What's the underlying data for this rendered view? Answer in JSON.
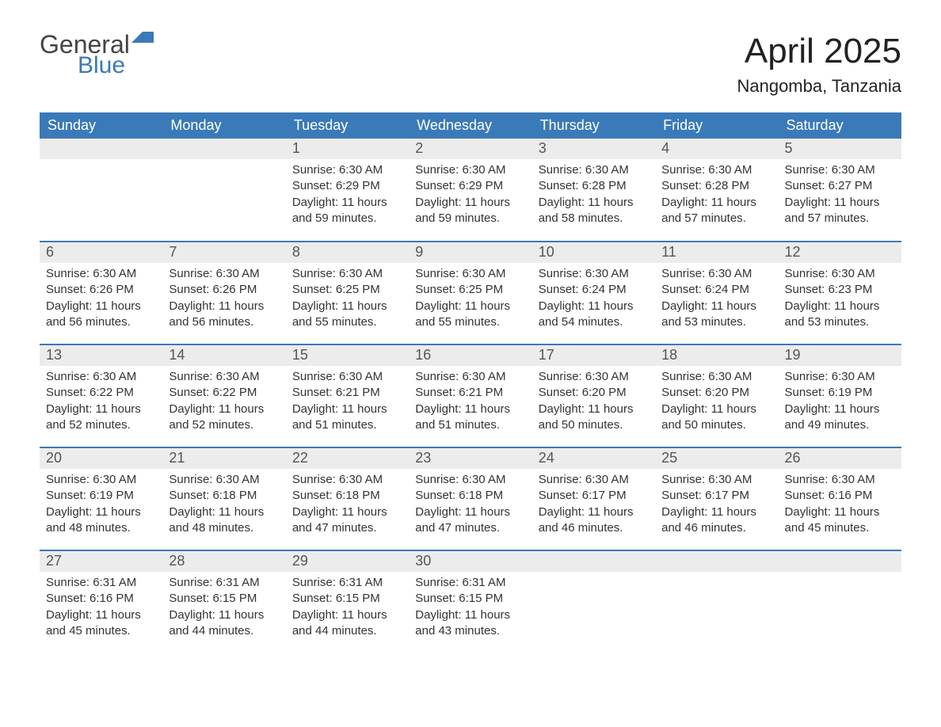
{
  "logo": {
    "word1": "General",
    "word2": "Blue"
  },
  "title": "April 2025",
  "location": "Nangomba, Tanzania",
  "colors": {
    "header_bg": "#3a7ab8",
    "header_text": "#ffffff",
    "daynum_bg": "#ececec",
    "divider": "#3a7ab8",
    "body_text": "#333333",
    "page_bg": "#ffffff"
  },
  "typography": {
    "title_fontsize": 44,
    "location_fontsize": 22,
    "header_fontsize": 18,
    "daynum_fontsize": 18,
    "body_fontsize": 15
  },
  "columns": [
    "Sunday",
    "Monday",
    "Tuesday",
    "Wednesday",
    "Thursday",
    "Friday",
    "Saturday"
  ],
  "weeks": [
    [
      {
        "day": "",
        "sunrise": "",
        "sunset": "",
        "daylight": ""
      },
      {
        "day": "",
        "sunrise": "",
        "sunset": "",
        "daylight": ""
      },
      {
        "day": "1",
        "sunrise": "Sunrise: 6:30 AM",
        "sunset": "Sunset: 6:29 PM",
        "daylight": "Daylight: 11 hours and 59 minutes."
      },
      {
        "day": "2",
        "sunrise": "Sunrise: 6:30 AM",
        "sunset": "Sunset: 6:29 PM",
        "daylight": "Daylight: 11 hours and 59 minutes."
      },
      {
        "day": "3",
        "sunrise": "Sunrise: 6:30 AM",
        "sunset": "Sunset: 6:28 PM",
        "daylight": "Daylight: 11 hours and 58 minutes."
      },
      {
        "day": "4",
        "sunrise": "Sunrise: 6:30 AM",
        "sunset": "Sunset: 6:28 PM",
        "daylight": "Daylight: 11 hours and 57 minutes."
      },
      {
        "day": "5",
        "sunrise": "Sunrise: 6:30 AM",
        "sunset": "Sunset: 6:27 PM",
        "daylight": "Daylight: 11 hours and 57 minutes."
      }
    ],
    [
      {
        "day": "6",
        "sunrise": "Sunrise: 6:30 AM",
        "sunset": "Sunset: 6:26 PM",
        "daylight": "Daylight: 11 hours and 56 minutes."
      },
      {
        "day": "7",
        "sunrise": "Sunrise: 6:30 AM",
        "sunset": "Sunset: 6:26 PM",
        "daylight": "Daylight: 11 hours and 56 minutes."
      },
      {
        "day": "8",
        "sunrise": "Sunrise: 6:30 AM",
        "sunset": "Sunset: 6:25 PM",
        "daylight": "Daylight: 11 hours and 55 minutes."
      },
      {
        "day": "9",
        "sunrise": "Sunrise: 6:30 AM",
        "sunset": "Sunset: 6:25 PM",
        "daylight": "Daylight: 11 hours and 55 minutes."
      },
      {
        "day": "10",
        "sunrise": "Sunrise: 6:30 AM",
        "sunset": "Sunset: 6:24 PM",
        "daylight": "Daylight: 11 hours and 54 minutes."
      },
      {
        "day": "11",
        "sunrise": "Sunrise: 6:30 AM",
        "sunset": "Sunset: 6:24 PM",
        "daylight": "Daylight: 11 hours and 53 minutes."
      },
      {
        "day": "12",
        "sunrise": "Sunrise: 6:30 AM",
        "sunset": "Sunset: 6:23 PM",
        "daylight": "Daylight: 11 hours and 53 minutes."
      }
    ],
    [
      {
        "day": "13",
        "sunrise": "Sunrise: 6:30 AM",
        "sunset": "Sunset: 6:22 PM",
        "daylight": "Daylight: 11 hours and 52 minutes."
      },
      {
        "day": "14",
        "sunrise": "Sunrise: 6:30 AM",
        "sunset": "Sunset: 6:22 PM",
        "daylight": "Daylight: 11 hours and 52 minutes."
      },
      {
        "day": "15",
        "sunrise": "Sunrise: 6:30 AM",
        "sunset": "Sunset: 6:21 PM",
        "daylight": "Daylight: 11 hours and 51 minutes."
      },
      {
        "day": "16",
        "sunrise": "Sunrise: 6:30 AM",
        "sunset": "Sunset: 6:21 PM",
        "daylight": "Daylight: 11 hours and 51 minutes."
      },
      {
        "day": "17",
        "sunrise": "Sunrise: 6:30 AM",
        "sunset": "Sunset: 6:20 PM",
        "daylight": "Daylight: 11 hours and 50 minutes."
      },
      {
        "day": "18",
        "sunrise": "Sunrise: 6:30 AM",
        "sunset": "Sunset: 6:20 PM",
        "daylight": "Daylight: 11 hours and 50 minutes."
      },
      {
        "day": "19",
        "sunrise": "Sunrise: 6:30 AM",
        "sunset": "Sunset: 6:19 PM",
        "daylight": "Daylight: 11 hours and 49 minutes."
      }
    ],
    [
      {
        "day": "20",
        "sunrise": "Sunrise: 6:30 AM",
        "sunset": "Sunset: 6:19 PM",
        "daylight": "Daylight: 11 hours and 48 minutes."
      },
      {
        "day": "21",
        "sunrise": "Sunrise: 6:30 AM",
        "sunset": "Sunset: 6:18 PM",
        "daylight": "Daylight: 11 hours and 48 minutes."
      },
      {
        "day": "22",
        "sunrise": "Sunrise: 6:30 AM",
        "sunset": "Sunset: 6:18 PM",
        "daylight": "Daylight: 11 hours and 47 minutes."
      },
      {
        "day": "23",
        "sunrise": "Sunrise: 6:30 AM",
        "sunset": "Sunset: 6:18 PM",
        "daylight": "Daylight: 11 hours and 47 minutes."
      },
      {
        "day": "24",
        "sunrise": "Sunrise: 6:30 AM",
        "sunset": "Sunset: 6:17 PM",
        "daylight": "Daylight: 11 hours and 46 minutes."
      },
      {
        "day": "25",
        "sunrise": "Sunrise: 6:30 AM",
        "sunset": "Sunset: 6:17 PM",
        "daylight": "Daylight: 11 hours and 46 minutes."
      },
      {
        "day": "26",
        "sunrise": "Sunrise: 6:30 AM",
        "sunset": "Sunset: 6:16 PM",
        "daylight": "Daylight: 11 hours and 45 minutes."
      }
    ],
    [
      {
        "day": "27",
        "sunrise": "Sunrise: 6:31 AM",
        "sunset": "Sunset: 6:16 PM",
        "daylight": "Daylight: 11 hours and 45 minutes."
      },
      {
        "day": "28",
        "sunrise": "Sunrise: 6:31 AM",
        "sunset": "Sunset: 6:15 PM",
        "daylight": "Daylight: 11 hours and 44 minutes."
      },
      {
        "day": "29",
        "sunrise": "Sunrise: 6:31 AM",
        "sunset": "Sunset: 6:15 PM",
        "daylight": "Daylight: 11 hours and 44 minutes."
      },
      {
        "day": "30",
        "sunrise": "Sunrise: 6:31 AM",
        "sunset": "Sunset: 6:15 PM",
        "daylight": "Daylight: 11 hours and 43 minutes."
      },
      {
        "day": "",
        "sunrise": "",
        "sunset": "",
        "daylight": ""
      },
      {
        "day": "",
        "sunrise": "",
        "sunset": "",
        "daylight": ""
      },
      {
        "day": "",
        "sunrise": "",
        "sunset": "",
        "daylight": ""
      }
    ]
  ]
}
